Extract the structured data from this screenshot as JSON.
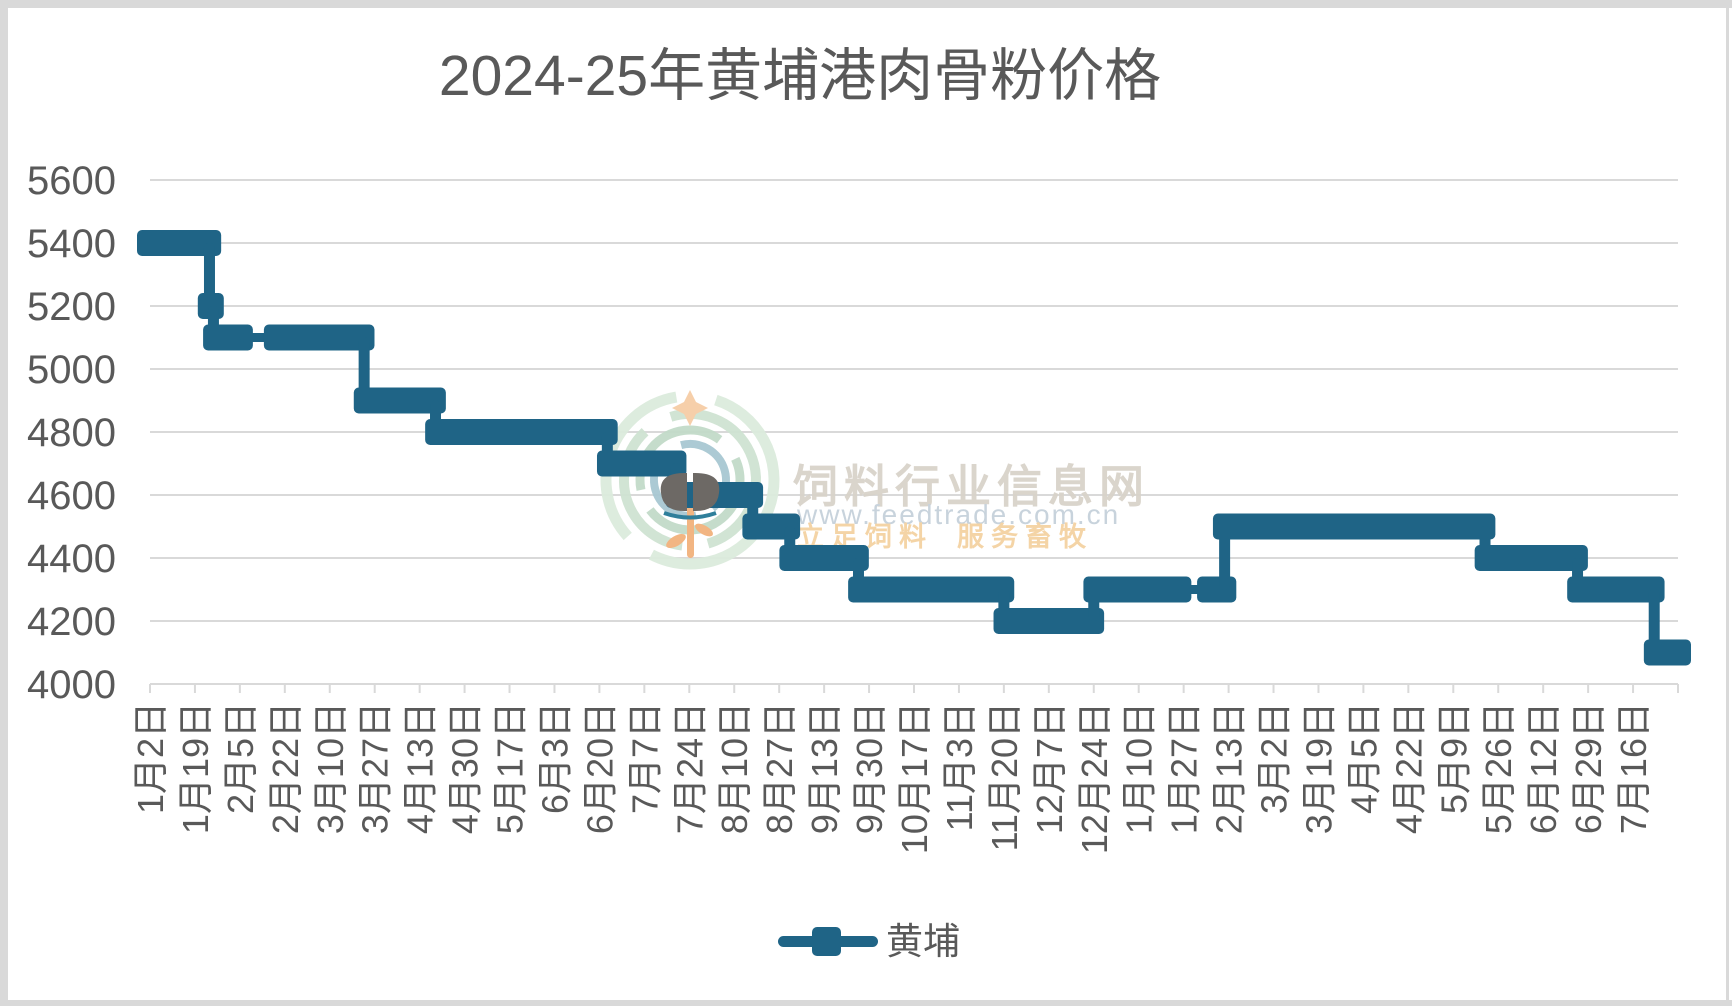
{
  "title": "2024-25年黄埔港肉骨粉价格",
  "legend": {
    "series_label": "黄埔"
  },
  "watermark": {
    "site_name": "饲料行业信息网",
    "url": "www.feedtrade.com.cn",
    "slogan_left": "立足饲料",
    "slogan_right": "服务畜牧"
  },
  "chart_data": {
    "type": "line",
    "title": "2024-25年黄埔港肉骨粉价格",
    "series_name": "黄埔",
    "line_color": "#1f6486",
    "grid_color": "#d9d9d9",
    "label_color": "#595959",
    "legend_position": "bottom",
    "grid": "horizontal",
    "ylim": [
      4000,
      5600
    ],
    "y_ticks": [
      5600,
      5400,
      5200,
      5000,
      4800,
      4600,
      4400,
      4200,
      4000
    ],
    "x_tick_labels": [
      "1月2日",
      "1月19日",
      "2月5日",
      "2月22日",
      "3月10日",
      "3月27日",
      "4月13日",
      "4月30日",
      "5月17日",
      "6月3日",
      "6月20日",
      "7月7日",
      "7月24日",
      "8月10日",
      "8月27日",
      "9月13日",
      "9月30日",
      "10月17日",
      "11月3日",
      "11月20日",
      "12月7日",
      "12月24日",
      "1月10日",
      "1月27日",
      "2月13日",
      "3月2日",
      "3月19日",
      "4月5日",
      "4月22日",
      "5月9日",
      "5月26日",
      "6月12日",
      "6月29日",
      "7月16日"
    ],
    "x_label_interval_days": 17,
    "total_days": 578,
    "segments": [
      {
        "value": 5400,
        "d0": 0,
        "d1": 22,
        "start": "2024-01-02",
        "end": "2024-01-24"
      },
      {
        "value": 5200,
        "d0": 23,
        "d1": 23,
        "start": "2024-01-25",
        "end": "2024-01-25"
      },
      {
        "value": 5100,
        "d0": 25,
        "d1": 34,
        "start": "2024-01-27",
        "end": "2024-02-05"
      },
      {
        "gap": true,
        "value": 5100,
        "d0": 34,
        "d1": 48,
        "start": "2024-02-05",
        "end": "2024-02-19"
      },
      {
        "value": 5100,
        "d0": 48,
        "d1": 80,
        "start": "2024-02-19",
        "end": "2024-03-22"
      },
      {
        "value": 4900,
        "d0": 82,
        "d1": 107,
        "start": "2024-03-24",
        "end": "2024-04-18"
      },
      {
        "value": 4800,
        "d0": 109,
        "d1": 172,
        "start": "2024-04-20",
        "end": "2024-06-22"
      },
      {
        "value": 4700,
        "d0": 174,
        "d1": 198,
        "start": "2024-06-24",
        "end": "2024-07-18"
      },
      {
        "value": 4600,
        "d0": 200,
        "d1": 227,
        "start": "2024-07-20",
        "end": "2024-08-16"
      },
      {
        "value": 4500,
        "d0": 229,
        "d1": 241,
        "start": "2024-08-18",
        "end": "2024-08-30"
      },
      {
        "value": 4400,
        "d0": 243,
        "d1": 267,
        "start": "2024-09-01",
        "end": "2024-09-25"
      },
      {
        "value": 4300,
        "d0": 269,
        "d1": 322,
        "start": "2024-09-27",
        "end": "2024-11-19"
      },
      {
        "value": 4200,
        "d0": 324,
        "d1": 356,
        "start": "2024-11-21",
        "end": "2024-12-23"
      },
      {
        "value": 4300,
        "d0": 358,
        "d1": 389,
        "start": "2024-12-25",
        "end": "2025-01-25"
      },
      {
        "gap": true,
        "value": 4300,
        "d0": 389,
        "d1": 401,
        "start": "2025-01-25",
        "end": "2025-02-06"
      },
      {
        "value": 4300,
        "d0": 401,
        "d1": 406,
        "start": "2025-02-06",
        "end": "2025-02-11"
      },
      {
        "value": 4500,
        "d0": 407,
        "d1": 504,
        "start": "2025-02-12",
        "end": "2025-05-20"
      },
      {
        "value": 4400,
        "d0": 506,
        "d1": 539,
        "start": "2025-05-22",
        "end": "2025-06-24"
      },
      {
        "value": 4300,
        "d0": 541,
        "d1": 568,
        "start": "2025-06-26",
        "end": "2025-07-23"
      },
      {
        "value": 4100,
        "d0": 570,
        "d1": 578,
        "start": "2025-07-25",
        "end": "2025-08-02"
      }
    ]
  }
}
